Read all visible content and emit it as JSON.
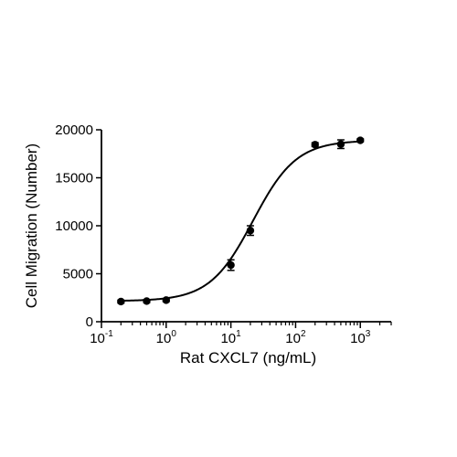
{
  "chart_data": {
    "type": "scatter",
    "title": "",
    "xlabel": "Rat CXCL7 (ng/mL)",
    "ylabel": "Cell Migration (Number)",
    "xscale": "log",
    "xlim": [
      0.1,
      3000
    ],
    "ylim": [
      0,
      20000
    ],
    "grid": false,
    "x_ticks": [
      {
        "value": 0.1,
        "base": "10",
        "exp": "-1"
      },
      {
        "value": 1,
        "base": "10",
        "exp": "0"
      },
      {
        "value": 10,
        "base": "10",
        "exp": "1"
      },
      {
        "value": 100,
        "base": "10",
        "exp": "2"
      },
      {
        "value": 1000,
        "base": "10",
        "exp": "3"
      }
    ],
    "y_ticks": [
      0,
      5000,
      10000,
      15000,
      20000
    ],
    "series": [
      {
        "x": [
          0.2,
          0.5,
          1,
          10,
          20,
          200,
          500,
          1000
        ],
        "y": [
          2100,
          2150,
          2250,
          5900,
          9500,
          18450,
          18500,
          18900
        ],
        "error": [
          150,
          150,
          150,
          550,
          500,
          200,
          450,
          150
        ]
      }
    ],
    "fit_curve": {
      "model": "4PL",
      "bottom": 2150,
      "top": 18900,
      "ec50": 22,
      "hill": 1.3
    }
  }
}
